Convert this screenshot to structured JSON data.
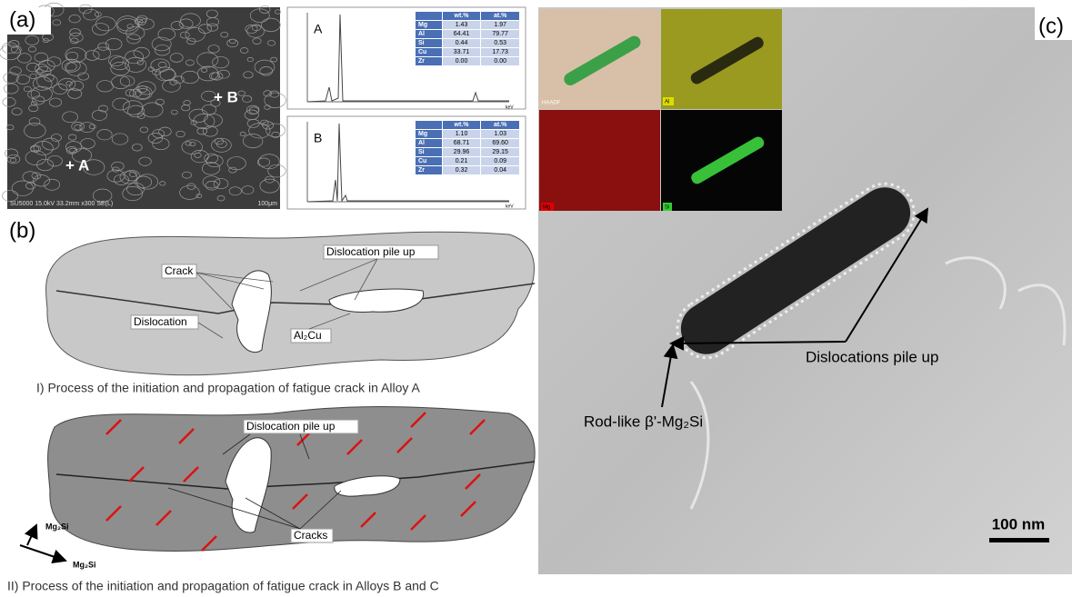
{
  "panel_a": {
    "label": "(a)",
    "sem": {
      "point_a": "+ A",
      "point_b": "+ B",
      "info": "SU5000 15.0kV 33.2mm x300 SE(L)",
      "scale": "100μm"
    },
    "spectra": [
      {
        "label": "A",
        "x_label": "keV",
        "table": {
          "header": [
            "",
            "wt.%",
            "at.%"
          ],
          "rows": [
            [
              "Mg",
              "1.43",
              "1.97"
            ],
            [
              "Al",
              "64.41",
              "79.77"
            ],
            [
              "Si",
              "0.44",
              "0.53"
            ],
            [
              "Cu",
              "33.71",
              "17.73"
            ],
            [
              "Zr",
              "0.00",
              "0.00"
            ]
          ]
        }
      },
      {
        "label": "B",
        "x_label": "keV",
        "table": {
          "header": [
            "",
            "wt.%",
            "at.%"
          ],
          "rows": [
            [
              "Mg",
              "1.10",
              "1.03"
            ],
            [
              "Al",
              "68.71",
              "69.60"
            ],
            [
              "Si",
              "29.96",
              "29.15"
            ],
            [
              "Cu",
              "0.21",
              "0.09"
            ],
            [
              "Zr",
              "0.32",
              "0.04"
            ]
          ]
        }
      }
    ]
  },
  "panel_b": {
    "label": "(b)",
    "diagram_1": {
      "labels": [
        "Crack",
        "Dislocation pile up",
        "Dislocation",
        "Al₂Cu"
      ],
      "caption": "I) Process of the initiation and propagation of fatigue crack in Alloy A"
    },
    "diagram_2": {
      "labels": [
        "Dislocation pile up",
        "Cracks"
      ],
      "axes": [
        "Mg₂Si",
        "Mg₂Si"
      ],
      "caption": "II) Process of the initiation and propagation of fatigue crack in Alloys B and C"
    }
  },
  "panel_c": {
    "label": "(c)",
    "inset": [
      "HAADF",
      "Al",
      "Mg",
      "Si"
    ],
    "annotations": [
      "Dislocations pile up",
      "Rod-like β'-Mg₂Si"
    ],
    "scale": "100 nm"
  }
}
